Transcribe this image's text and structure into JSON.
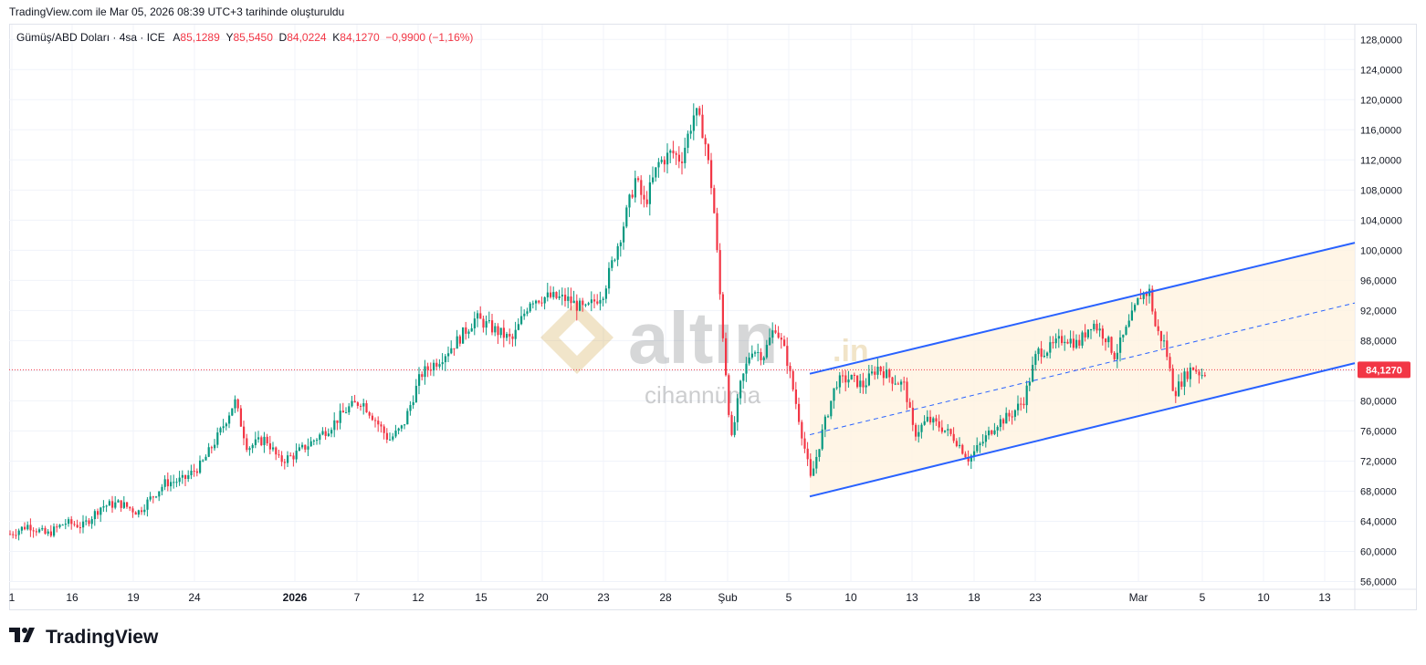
{
  "header": {
    "created_note": "TradingView.com ile Mar 05, 2026 08:39 UTC+3 tarihinde oluşturuldu"
  },
  "legend": {
    "symbol": "Gümüş/ABD Doları · 4sa · ICE",
    "open_label": "A",
    "open_value": "85,1289",
    "high_label": "Y",
    "high_value": "85,5450",
    "low_label": "D",
    "low_value": "84,0224",
    "close_label": "K",
    "close_value": "84,1270",
    "change": "−0,9900 (−1,16%)"
  },
  "watermark": {
    "brand": "altın",
    "suffix": ".in",
    "sub": "cihannüma"
  },
  "footer": {
    "brand": "TradingView"
  },
  "chart_data": {
    "type": "candlestick",
    "ylim": [
      54.0,
      129.0
    ],
    "y_ticks": [
      "128,0000",
      "124,0000",
      "120,0000",
      "116,0000",
      "112,0000",
      "108,0000",
      "104,0000",
      "100,0000",
      "96,0000",
      "92,0000",
      "88,0000",
      "84,0000",
      "80,0000",
      "76,0000",
      "72,0000",
      "68,0000",
      "64,0000",
      "60,0000",
      "56,0000"
    ],
    "x_ticks": [
      "1",
      "16",
      "19",
      "24",
      "2026",
      "7",
      "12",
      "15",
      "20",
      "23",
      "28",
      "Şub",
      "5",
      "10",
      "13",
      "18",
      "23",
      "Mar",
      "5",
      "10",
      "13"
    ],
    "last_price": 84.127,
    "last_price_label": "84,1270",
    "colors": {
      "up": "#089981",
      "down": "#f23645",
      "channel": "#2962ff",
      "channel_fill": "#fff3e0",
      "grid": "#f0f3fa"
    },
    "channel": {
      "upper": [
        [
          887,
          83.6
        ],
        [
          1484,
          101.0
        ]
      ],
      "lower": [
        [
          887,
          67.3
        ],
        [
          1484,
          85.0
        ]
      ],
      "mid": [
        [
          887,
          75.5
        ],
        [
          1484,
          93.0
        ]
      ]
    },
    "price_path": [
      [
        10,
        62.3
      ],
      [
        30,
        63.5
      ],
      [
        50,
        62.2
      ],
      [
        70,
        63.8
      ],
      [
        90,
        63.4
      ],
      [
        110,
        66.0
      ],
      [
        130,
        66.4
      ],
      [
        150,
        65.2
      ],
      [
        165,
        67.2
      ],
      [
        180,
        69.1
      ],
      [
        200,
        69.5
      ],
      [
        220,
        71.6
      ],
      [
        240,
        75.8
      ],
      [
        256,
        80.0
      ],
      [
        270,
        73.8
      ],
      [
        290,
        75.0
      ],
      [
        305,
        72.0
      ],
      [
        320,
        72.7
      ],
      [
        340,
        74.5
      ],
      [
        360,
        76.5
      ],
      [
        380,
        79.0
      ],
      [
        395,
        80.0
      ],
      [
        410,
        77.5
      ],
      [
        425,
        74.8
      ],
      [
        440,
        76.5
      ],
      [
        460,
        83.5
      ],
      [
        480,
        85.5
      ],
      [
        500,
        88.0
      ],
      [
        520,
        91.0
      ],
      [
        540,
        89.5
      ],
      [
        560,
        88.0
      ],
      [
        580,
        93.5
      ],
      [
        600,
        93.8
      ],
      [
        620,
        93.5
      ],
      [
        640,
        92.0
      ],
      [
        660,
        94.5
      ],
      [
        680,
        102.5
      ],
      [
        695,
        109.5
      ],
      [
        705,
        106.0
      ],
      [
        720,
        111.5
      ],
      [
        735,
        113.0
      ],
      [
        745,
        112.0
      ],
      [
        760,
        118.5
      ],
      [
        770,
        115.5
      ],
      [
        780,
        107.0
      ],
      [
        790,
        90.0
      ],
      [
        800,
        74.5
      ],
      [
        810,
        82.0
      ],
      [
        822,
        87.0
      ],
      [
        835,
        86.0
      ],
      [
        848,
        90.0
      ],
      [
        860,
        86.0
      ],
      [
        872,
        79.0
      ],
      [
        887,
        69.5
      ],
      [
        900,
        76.0
      ],
      [
        915,
        82.5
      ],
      [
        930,
        83.0
      ],
      [
        945,
        82.0
      ],
      [
        960,
        84.5
      ],
      [
        975,
        83.0
      ],
      [
        990,
        82.0
      ],
      [
        1000,
        75.5
      ],
      [
        1015,
        77.5
      ],
      [
        1030,
        76.5
      ],
      [
        1045,
        75.0
      ],
      [
        1060,
        72.3
      ],
      [
        1075,
        74.5
      ],
      [
        1090,
        77.0
      ],
      [
        1105,
        78.0
      ],
      [
        1120,
        80.0
      ],
      [
        1135,
        86.5
      ],
      [
        1150,
        87.0
      ],
      [
        1165,
        88.5
      ],
      [
        1180,
        87.5
      ],
      [
        1195,
        90.5
      ],
      [
        1210,
        88.5
      ],
      [
        1220,
        86.0
      ],
      [
        1235,
        90.0
      ],
      [
        1248,
        94.0
      ],
      [
        1258,
        94.5
      ],
      [
        1265,
        89.5
      ],
      [
        1275,
        87.5
      ],
      [
        1285,
        81.0
      ],
      [
        1295,
        83.0
      ],
      [
        1305,
        84.5
      ],
      [
        1315,
        83.5
      ],
      [
        1322,
        84.1
      ]
    ]
  }
}
